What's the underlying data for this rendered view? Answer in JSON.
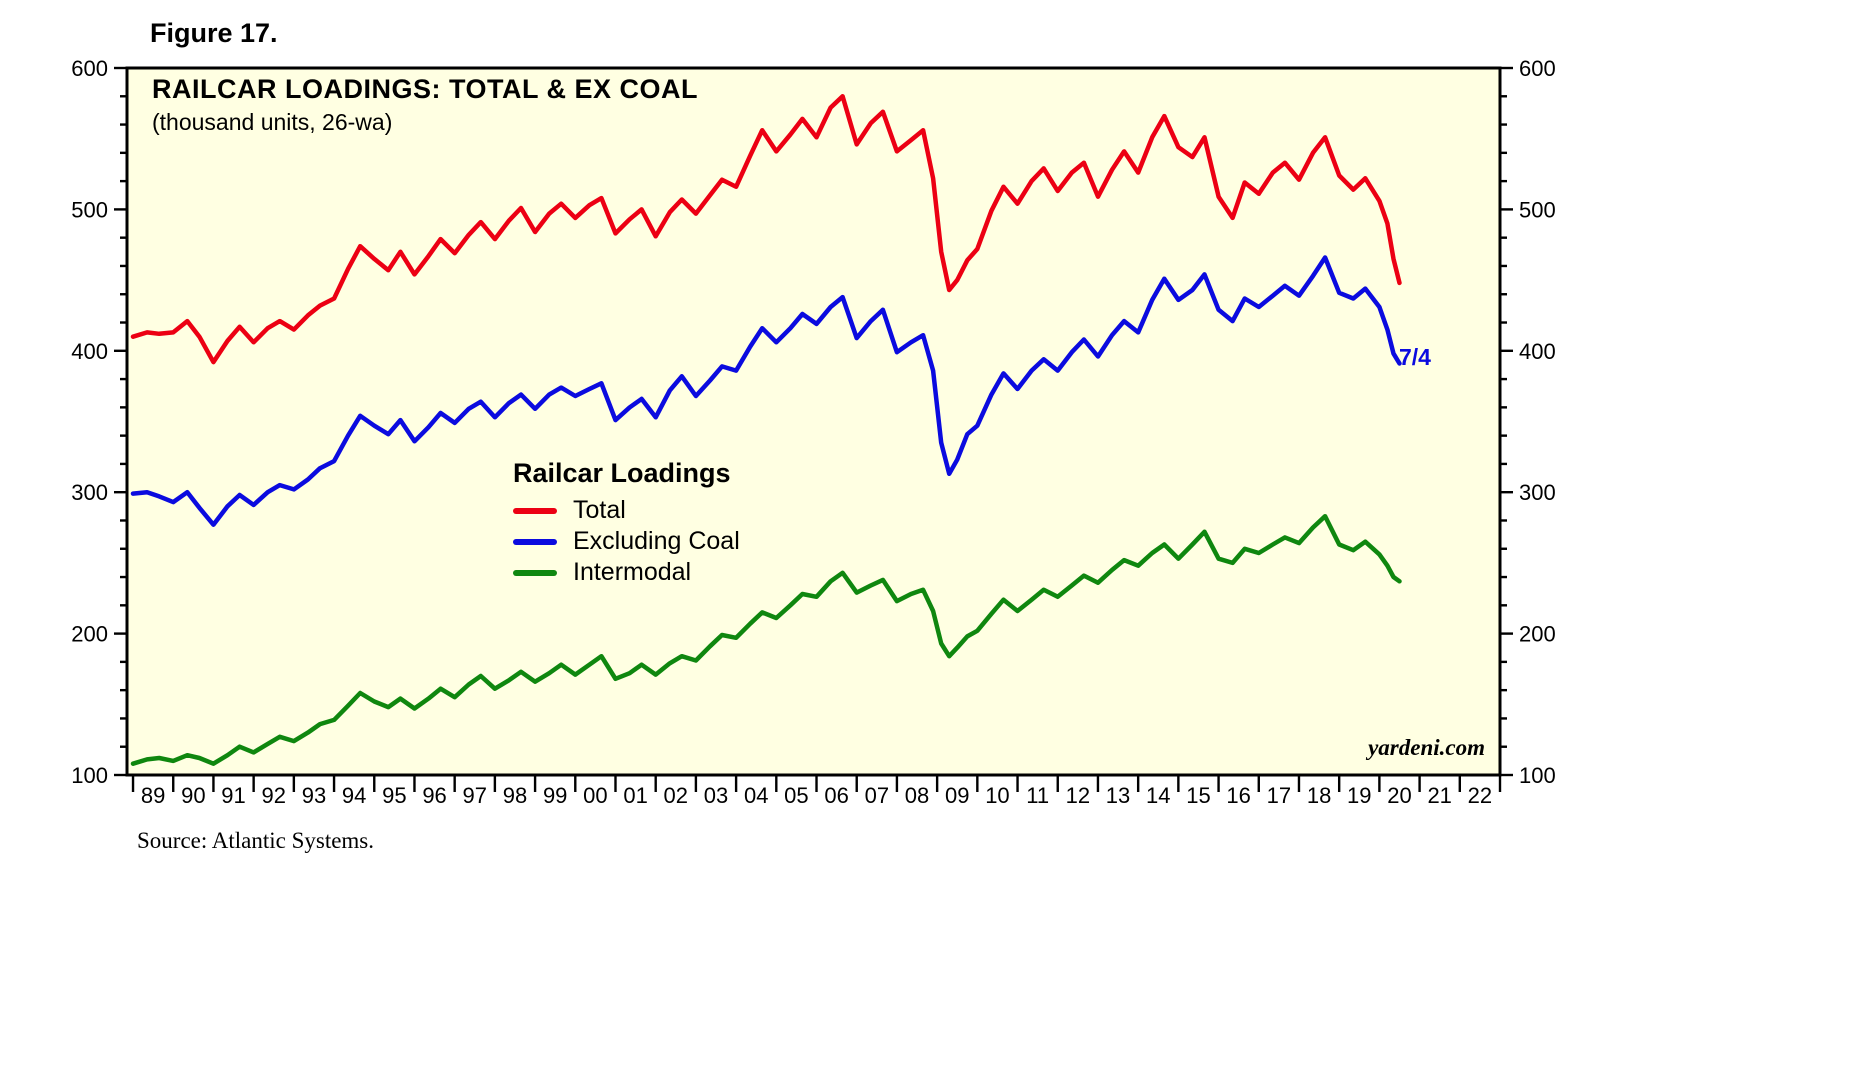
{
  "figure_label": "Figure 17.",
  "title": "RAILCAR LOADINGS: TOTAL & EX COAL",
  "subtitle": "(thousand units, 26-wa)",
  "legend": {
    "heading": "Railcar Loadings",
    "items": [
      {
        "label": "Total",
        "color": "#ec0013"
      },
      {
        "label": "Excluding Coal",
        "color": "#0b0bdf"
      },
      {
        "label": "Intermodal",
        "color": "#0f870f"
      }
    ]
  },
  "annotation": {
    "text": "7/4",
    "color": "#0b0bdf"
  },
  "watermark": "yardeni.com",
  "source": "Source: Atlantic Systems.",
  "chart_data": {
    "type": "line",
    "title": "RAILCAR LOADINGS: TOTAL & EX COAL",
    "subtitle": "(thousand units, 26-wa)",
    "xlabel": "",
    "ylabel": "thousand units, 26-week average",
    "ylim": [
      100,
      600
    ],
    "xlim": [
      1988.85,
      2023
    ],
    "y_major_ticks": [
      100,
      200,
      300,
      400,
      500,
      600
    ],
    "y_minor_step": 20,
    "x_year_labels": [
      "89",
      "90",
      "91",
      "92",
      "93",
      "94",
      "95",
      "96",
      "97",
      "98",
      "99",
      "00",
      "01",
      "02",
      "03",
      "04",
      "05",
      "06",
      "07",
      "08",
      "09",
      "10",
      "11",
      "12",
      "13",
      "14",
      "15",
      "16",
      "17",
      "18",
      "19",
      "20",
      "21",
      "22"
    ],
    "plot_bg": "#ffffe2",
    "grid": false,
    "legend_position": "center-left inside plot",
    "x": [
      1989,
      1989.35,
      1989.65,
      1990,
      1990.35,
      1990.65,
      1991,
      1991.35,
      1991.65,
      1992,
      1992.35,
      1992.65,
      1993,
      1993.35,
      1993.65,
      1994,
      1994.35,
      1994.65,
      1995,
      1995.35,
      1995.65,
      1996,
      1996.35,
      1996.65,
      1997,
      1997.35,
      1997.65,
      1998,
      1998.35,
      1998.65,
      1999,
      1999.35,
      1999.65,
      2000,
      2000.35,
      2000.65,
      2001,
      2001.35,
      2001.65,
      2002,
      2002.35,
      2002.65,
      2003,
      2003.35,
      2003.65,
      2004,
      2004.35,
      2004.65,
      2005,
      2005.35,
      2005.65,
      2006,
      2006.35,
      2006.65,
      2007,
      2007.35,
      2007.65,
      2008,
      2008.35,
      2008.65,
      2008.9,
      2009.1,
      2009.3,
      2009.5,
      2009.75,
      2010,
      2010.35,
      2010.65,
      2011,
      2011.35,
      2011.65,
      2012,
      2012.35,
      2012.65,
      2013,
      2013.35,
      2013.65,
      2014,
      2014.35,
      2014.65,
      2015,
      2015.35,
      2015.65,
      2016,
      2016.35,
      2016.65,
      2017,
      2017.35,
      2017.65,
      2018,
      2018.35,
      2018.65,
      2019,
      2019.35,
      2019.65,
      2020,
      2020.2,
      2020.35,
      2020.5
    ],
    "series": [
      {
        "name": "Total",
        "color": "#ec0013",
        "values": [
          410,
          413,
          412,
          413,
          421,
          410,
          392,
          407,
          417,
          406,
          416,
          421,
          415,
          425,
          432,
          437,
          458,
          474,
          465,
          457,
          470,
          454,
          467,
          479,
          469,
          482,
          491,
          479,
          492,
          501,
          484,
          497,
          504,
          494,
          503,
          508,
          483,
          493,
          500,
          481,
          498,
          507,
          497,
          510,
          521,
          516,
          538,
          556,
          541,
          553,
          564,
          551,
          572,
          580,
          546,
          561,
          569,
          541,
          549,
          556,
          522,
          470,
          443,
          450,
          464,
          472,
          499,
          516,
          504,
          520,
          529,
          513,
          526,
          533,
          509,
          528,
          541,
          526,
          551,
          566,
          544,
          537,
          551,
          509,
          494,
          519,
          511,
          526,
          533,
          521,
          540,
          551,
          524,
          514,
          522,
          506,
          490,
          465,
          448
        ]
      },
      {
        "name": "Excluding Coal",
        "color": "#0b0bdf",
        "values": [
          299,
          300,
          297,
          293,
          300,
          289,
          277,
          290,
          298,
          291,
          300,
          305,
          302,
          309,
          317,
          322,
          340,
          354,
          347,
          341,
          351,
          336,
          346,
          356,
          349,
          359,
          364,
          353,
          363,
          369,
          359,
          369,
          374,
          368,
          373,
          377,
          351,
          360,
          366,
          353,
          372,
          382,
          368,
          379,
          389,
          386,
          403,
          416,
          406,
          416,
          426,
          419,
          431,
          438,
          409,
          421,
          429,
          399,
          406,
          411,
          386,
          335,
          313,
          323,
          341,
          347,
          369,
          384,
          373,
          386,
          394,
          386,
          399,
          408,
          396,
          411,
          421,
          413,
          436,
          451,
          436,
          443,
          454,
          429,
          421,
          437,
          431,
          439,
          446,
          439,
          453,
          466,
          441,
          437,
          444,
          431,
          415,
          398,
          391
        ]
      },
      {
        "name": "Intermodal",
        "color": "#0f870f",
        "values": [
          108,
          111,
          112,
          110,
          114,
          112,
          108,
          114,
          120,
          116,
          122,
          127,
          124,
          130,
          136,
          139,
          149,
          158,
          152,
          148,
          154,
          147,
          154,
          161,
          155,
          164,
          170,
          161,
          167,
          173,
          166,
          172,
          178,
          171,
          178,
          184,
          168,
          172,
          178,
          171,
          179,
          184,
          181,
          191,
          199,
          197,
          207,
          215,
          211,
          220,
          228,
          226,
          237,
          243,
          229,
          234,
          238,
          223,
          228,
          231,
          216,
          193,
          184,
          190,
          198,
          202,
          214,
          224,
          216,
          224,
          231,
          226,
          234,
          241,
          236,
          245,
          252,
          248,
          257,
          263,
          253,
          263,
          272,
          253,
          250,
          260,
          257,
          263,
          268,
          264,
          275,
          283,
          263,
          259,
          265,
          256,
          248,
          240,
          237
        ]
      }
    ]
  }
}
